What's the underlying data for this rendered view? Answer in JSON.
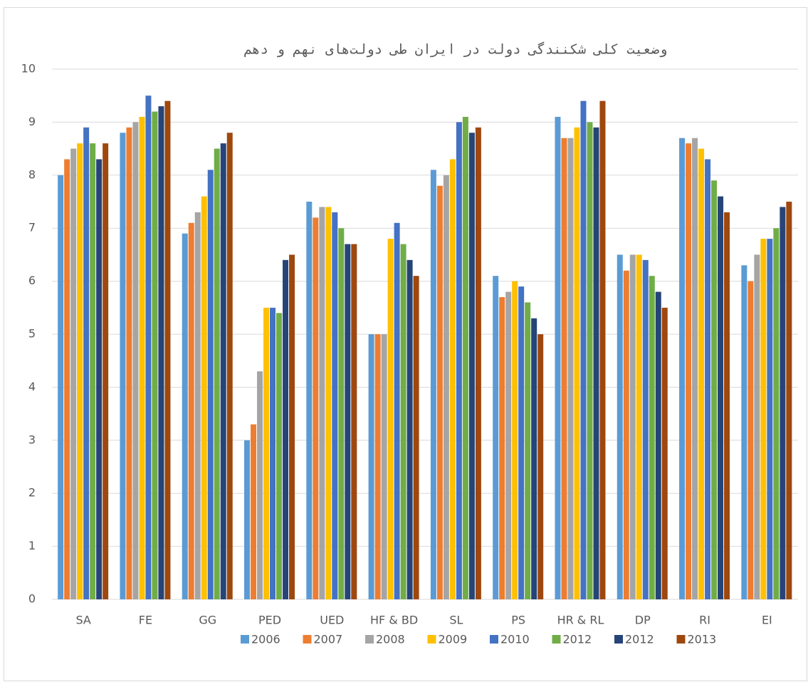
{
  "chart_data": {
    "type": "bar",
    "title": "وضعیت کلی شکنندگی دولت در ایران طی دولت‌های نهم و دهم",
    "categories": [
      "SA",
      "FE",
      "GG",
      "PED",
      "UED",
      "HF & BD",
      "SL",
      "PS",
      "HR & RL",
      "DP",
      "RI",
      "EI"
    ],
    "series": [
      {
        "name": "2006",
        "color": "#5b9bd5",
        "values": [
          8.0,
          8.8,
          6.9,
          3.0,
          7.5,
          5.0,
          8.1,
          6.1,
          9.1,
          6.5,
          8.7,
          6.3
        ]
      },
      {
        "name": "2007",
        "color": "#ed7d31",
        "values": [
          8.3,
          8.9,
          7.1,
          3.3,
          7.2,
          5.0,
          7.8,
          5.7,
          8.7,
          6.2,
          8.6,
          6.0
        ]
      },
      {
        "name": "2008",
        "color": "#a5a5a5",
        "values": [
          8.5,
          9.0,
          7.3,
          4.3,
          7.4,
          5.0,
          8.0,
          5.8,
          8.7,
          6.5,
          8.7,
          6.5
        ]
      },
      {
        "name": "2009",
        "color": "#ffc000",
        "values": [
          8.6,
          9.1,
          7.6,
          5.5,
          7.4,
          6.8,
          8.3,
          6.0,
          8.9,
          6.5,
          8.5,
          6.8
        ]
      },
      {
        "name": "2010",
        "color": "#4472c4",
        "values": [
          8.9,
          9.5,
          8.1,
          5.5,
          7.3,
          7.1,
          9.0,
          5.9,
          9.4,
          6.4,
          8.3,
          6.8
        ]
      },
      {
        "name": "2012",
        "color": "#70ad47",
        "values": [
          8.6,
          9.2,
          8.5,
          5.4,
          7.0,
          6.7,
          9.1,
          5.6,
          9.0,
          6.1,
          7.9,
          7.0
        ]
      },
      {
        "name": "2012",
        "color": "#264478",
        "values": [
          8.3,
          9.3,
          8.6,
          6.4,
          6.7,
          6.4,
          8.8,
          5.3,
          8.9,
          5.8,
          7.6,
          7.4
        ]
      },
      {
        "name": "2013",
        "color": "#9e480e",
        "values": [
          8.6,
          9.4,
          8.8,
          6.5,
          6.7,
          6.1,
          8.9,
          5.0,
          9.4,
          5.5,
          7.3,
          7.5
        ]
      }
    ],
    "ylim": [
      0,
      10
    ],
    "yticks": [
      0,
      1,
      2,
      3,
      4,
      5,
      6,
      7,
      8,
      9,
      10
    ],
    "grid": true,
    "legend": "bottom"
  }
}
